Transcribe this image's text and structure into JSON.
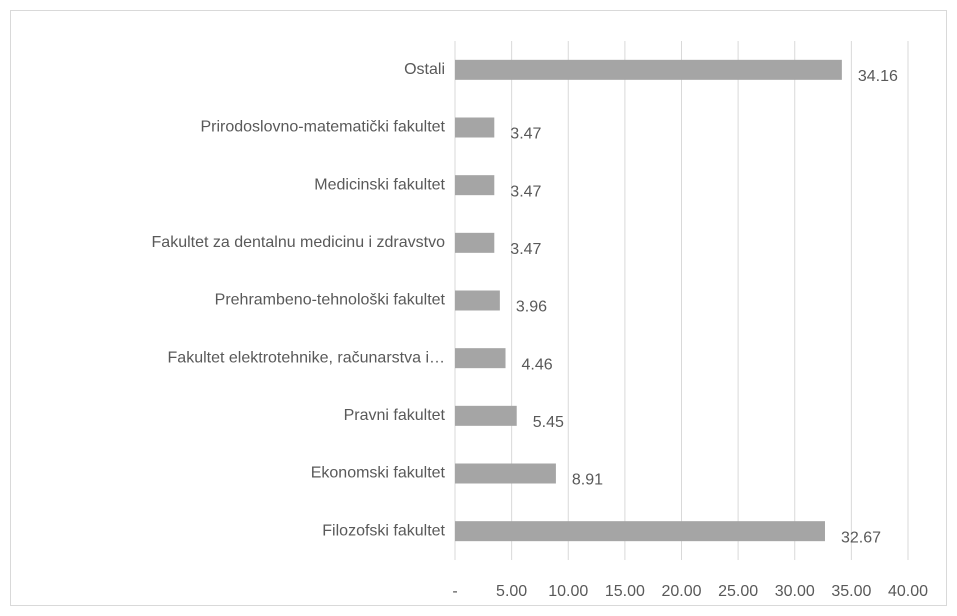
{
  "chart_data": {
    "type": "bar",
    "orientation": "horizontal",
    "categories": [
      "Ostali",
      "Prirodoslovno-matematički fakultet",
      "Medicinski fakultet",
      "Fakultet za dentalnu medicinu i zdravstvo",
      "Prehrambeno-tehnološki fakultet",
      "Fakultet elektrotehnike, računarstva i…",
      "Pravni fakultet",
      "Ekonomski fakultet",
      "Filozofski fakultet"
    ],
    "values": [
      34.16,
      3.47,
      3.47,
      3.47,
      3.96,
      4.46,
      5.45,
      8.91,
      32.67
    ],
    "color": "#a5a5a5",
    "xlim": [
      0,
      40
    ],
    "xticks": [
      {
        "value": 0,
        "label": "-"
      },
      {
        "value": 5,
        "label": "5.00"
      },
      {
        "value": 10,
        "label": "10.00"
      },
      {
        "value": 15,
        "label": "15.00"
      },
      {
        "value": 20,
        "label": "20.00"
      },
      {
        "value": 25,
        "label": "25.00"
      },
      {
        "value": 30,
        "label": "30.00"
      },
      {
        "value": 35,
        "label": "35.00"
      },
      {
        "value": 40,
        "label": "40.00"
      }
    ],
    "grid": true
  }
}
